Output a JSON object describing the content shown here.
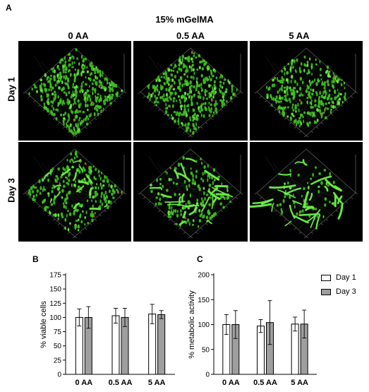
{
  "figure": {
    "panel_a_letter": "A",
    "panel_b_letter": "B",
    "panel_c_letter": "C",
    "title": "15% mGelMA",
    "columns": [
      "0 AA",
      "0.5 AA",
      "5 AA"
    ],
    "rows": [
      "Day 1",
      "Day 3"
    ],
    "colors": {
      "cells": "#3ec21f",
      "cells_bright": "#6ef04a",
      "dead": "#c0342c",
      "background": "#000000",
      "axis_grid": "#6a6a6a"
    }
  },
  "legend": {
    "items": [
      {
        "label": "Day 1",
        "color": "#ffffff"
      },
      {
        "label": "Day 3",
        "color": "#9e9e9e"
      }
    ]
  },
  "chart_data": [
    {
      "type": "bar",
      "panel": "B",
      "ylabel": "% viable cells",
      "xlabel": "",
      "ylim": [
        0,
        175
      ],
      "yticks": [
        0,
        25,
        50,
        75,
        100,
        125,
        150,
        175
      ],
      "categories": [
        "0 AA",
        "0.5 AA",
        "5 AA"
      ],
      "series": [
        {
          "name": "Day 1",
          "color": "#ffffff",
          "values": [
            100,
            103,
            106
          ],
          "errors": [
            15,
            13,
            17
          ]
        },
        {
          "name": "Day 3",
          "color": "#9e9e9e",
          "values": [
            100,
            100,
            105
          ],
          "errors": [
            19,
            16,
            7
          ]
        }
      ]
    },
    {
      "type": "bar",
      "panel": "C",
      "ylabel": "% metabolic activity",
      "xlabel": "",
      "ylim": [
        0,
        200
      ],
      "yticks": [
        0,
        50,
        100,
        150,
        200
      ],
      "categories": [
        "0 AA",
        "0.5 AA",
        "5 AA"
      ],
      "series": [
        {
          "name": "Day 1",
          "color": "#ffffff",
          "values": [
            100,
            97,
            101
          ],
          "errors": [
            20,
            13,
            14
          ]
        },
        {
          "name": "Day 3",
          "color": "#9e9e9e",
          "values": [
            100,
            104,
            101
          ],
          "errors": [
            28,
            44,
            28
          ]
        }
      ]
    }
  ]
}
